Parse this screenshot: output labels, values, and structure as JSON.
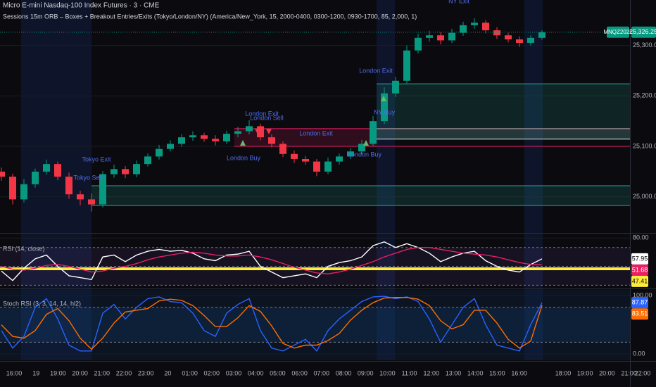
{
  "chart_data": [
    {
      "type": "candlestick",
      "title": "Micro E-mini Nasdaq-100 Index Futures · 3 · CME",
      "subtitle": "Sessions 15m ORB – Boxes + Breakout Entries/Exits (Tokyo/London/NY) (America/New_York, 15, 2000-0400, 0300-1200, 0930-1700, 85, 2,000, 1)",
      "symbol": "MNQZ2025",
      "last_label": "25,326.25",
      "up_color": "#089981",
      "down_color": "#f23645",
      "last_color": "#089981",
      "open": [
        25050,
        25040,
        24995,
        25025,
        25050,
        25065,
        25040,
        25005,
        24995,
        24985,
        25045,
        25055,
        25045,
        25065,
        25080,
        25095,
        25105,
        25118,
        25122,
        25115,
        25110,
        25125,
        25130,
        25140,
        25118,
        25105,
        25085,
        25075,
        25070,
        25050,
        25070,
        25080,
        25090,
        25105,
        25150,
        25205,
        25230,
        25290,
        25315,
        25320,
        25310,
        25325,
        25340,
        25345,
        25330,
        25320,
        25312,
        25305,
        25315
      ],
      "high": [
        25058,
        25046,
        25035,
        25056,
        25074,
        25070,
        25048,
        25012,
        25007,
        25051,
        25064,
        25061,
        25072,
        25086,
        25103,
        25112,
        25124,
        25130,
        25127,
        25122,
        25131,
        25139,
        25152,
        25145,
        25124,
        25110,
        25092,
        25081,
        25075,
        25078,
        25086,
        25097,
        25113,
        25160,
        25217,
        25238,
        25300,
        25323,
        25329,
        25326,
        25333,
        25347,
        25354,
        25350,
        25336,
        25325,
        25318,
        25320,
        25330
      ],
      "low": [
        25032,
        24985,
        24989,
        25018,
        25044,
        25033,
        24996,
        24983,
        24971,
        24979,
        25038,
        25037,
        25039,
        25060,
        25074,
        25090,
        25099,
        25111,
        25109,
        25102,
        25105,
        25118,
        25124,
        25112,
        25098,
        25079,
        25067,
        25064,
        25041,
        25045,
        25064,
        25075,
        25084,
        25100,
        25144,
        25198,
        25225,
        25284,
        25308,
        25302,
        25305,
        25319,
        25333,
        25324,
        25313,
        25306,
        25297,
        25300,
        25311
      ],
      "close": [
        25040,
        24995,
        25025,
        25050,
        25065,
        25040,
        25005,
        24995,
        24985,
        25045,
        25055,
        25045,
        25065,
        25080,
        25095,
        25105,
        25118,
        25122,
        25115,
        25110,
        25125,
        25130,
        25140,
        25118,
        25105,
        25085,
        25075,
        25070,
        25050,
        25070,
        25080,
        25090,
        25105,
        25150,
        25205,
        25230,
        25290,
        25315,
        25320,
        25310,
        25325,
        25340,
        25345,
        25330,
        25320,
        25312,
        25305,
        25315,
        25326.25
      ],
      "ylim": [
        24930,
        25390
      ],
      "yticks": [
        {
          "value": 25000,
          "label": "25,000.00"
        },
        {
          "value": 25100,
          "label": "25,100.00"
        },
        {
          "value": 25200,
          "label": "25,200.00"
        },
        {
          "value": 25300,
          "label": "25,300.00"
        }
      ],
      "boxes": [
        {
          "top": 25022,
          "bottom": 24983,
          "color": "#26a69a"
        },
        {
          "top": 25135,
          "bottom": 25100,
          "color": "#e91e63"
        },
        {
          "top": 25224,
          "bottom": 25114,
          "color": "#26a69a"
        },
        {
          "top": 25135,
          "bottom": 25115,
          "color": "#9e9e9e"
        }
      ],
      "annotations": [
        "Tokyo Exit",
        "Tokyo Sell",
        "London Exit",
        "London Sell",
        "London Buy",
        "London Exit",
        "London Buy",
        "London Exit",
        "NY Buy",
        "NY Exit"
      ],
      "time_labels": [
        "16:00",
        "19",
        "19:00",
        "20:00",
        "21:00",
        "22:00",
        "23:00",
        "20",
        "01:00",
        "02:00",
        "03:00",
        "04:00",
        "05:00",
        "06:00",
        "07:00",
        "08:00",
        "09:00",
        "10:00",
        "11:00",
        "12:00",
        "13:00",
        "14:00",
        "15:00",
        "16:00",
        null,
        "18:00",
        "19:00",
        "20:00",
        "21:00",
        "22:00"
      ]
    },
    {
      "type": "line",
      "title": "RSI (14, close)",
      "ylim": [
        28,
        84
      ],
      "yticks": [
        {
          "value": 80,
          "label": "80.00"
        }
      ],
      "hlines": [
        70,
        50,
        30
      ],
      "band_color": "#7e57c2",
      "level": 47.41,
      "level_color": "#ffeb3b",
      "series": [
        {
          "color": "#ffffff",
          "values": [
            45,
            35,
            48,
            58,
            62,
            50,
            40,
            38,
            36,
            60,
            62,
            55,
            62,
            66,
            68,
            66,
            67,
            64,
            58,
            56,
            62,
            63,
            66,
            50,
            44,
            38,
            40,
            42,
            38,
            50,
            54,
            56,
            60,
            72,
            76,
            70,
            74,
            70,
            64,
            55,
            60,
            64,
            66,
            56,
            50,
            46,
            44,
            52,
            57.95
          ]
        },
        {
          "color": "#e91e63",
          "values": [
            50,
            47,
            46,
            48,
            51,
            52,
            50,
            47,
            44,
            45,
            48,
            50,
            53,
            57,
            60,
            62,
            64,
            65,
            64,
            62,
            61,
            61,
            62,
            60,
            57,
            53,
            49,
            46,
            43,
            42,
            44,
            47,
            51,
            55,
            60,
            64,
            68,
            70,
            70,
            68,
            66,
            64,
            63,
            62,
            60,
            57,
            54,
            52,
            51.68
          ]
        }
      ]
    },
    {
      "type": "line",
      "title": "Stoch RSI (3, 3, 14, 14, hl2)",
      "ylim": [
        -11,
        110
      ],
      "yticks": [
        {
          "value": 100,
          "label": "100.00"
        },
        {
          "value": 0,
          "label": "0.00"
        }
      ],
      "hlines": [
        80,
        20
      ],
      "band_color": "#2196f3",
      "series": [
        {
          "color": "#2962ff",
          "values": [
            40,
            10,
            30,
            80,
            95,
            60,
            15,
            5,
            5,
            70,
            85,
            60,
            80,
            95,
            98,
            90,
            88,
            70,
            40,
            30,
            70,
            85,
            95,
            40,
            10,
            5,
            15,
            25,
            5,
            40,
            60,
            75,
            90,
            98,
            99,
            95,
            98,
            90,
            60,
            20,
            50,
            80,
            95,
            50,
            15,
            10,
            5,
            50,
            87.87
          ]
        },
        {
          "color": "#ff6d00",
          "values": [
            50,
            30,
            27,
            40,
            68,
            78,
            57,
            27,
            8,
            27,
            53,
            72,
            75,
            78,
            91,
            94,
            92,
            83,
            66,
            47,
            47,
            62,
            83,
            73,
            48,
            18,
            10,
            15,
            15,
            23,
            35,
            58,
            75,
            88,
            96,
            97,
            97,
            94,
            83,
            57,
            43,
            50,
            75,
            75,
            53,
            25,
            10,
            22,
            83.51
          ]
        }
      ]
    }
  ]
}
